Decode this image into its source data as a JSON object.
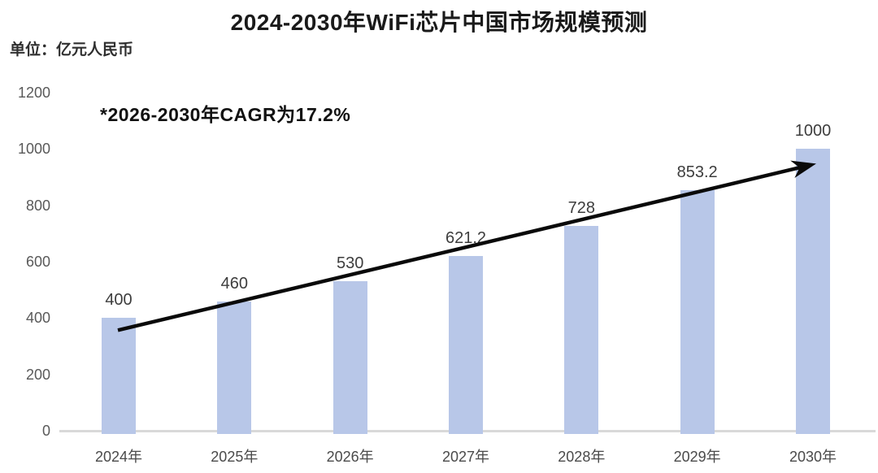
{
  "chart_data": {
    "type": "bar",
    "title": "2024-2030年WiFi芯片中国市场规模预测",
    "unit_label": "单位：亿元人民币",
    "annotation": "*2026-2030年CAGR为17.2%",
    "categories": [
      "2024年",
      "2025年",
      "2026年",
      "2027年",
      "2028年",
      "2029年",
      "2030年"
    ],
    "values": [
      400,
      460,
      530,
      621.2,
      728,
      853.2,
      1000
    ],
    "data_labels": [
      "400",
      "460",
      "530",
      "621.2",
      "728",
      "853.2",
      "1000"
    ],
    "xlabel": "",
    "ylabel": "",
    "ylim": [
      0,
      1200
    ],
    "yticks": [
      0,
      200,
      400,
      600,
      800,
      1000,
      1200
    ],
    "grid": false,
    "legend": "none",
    "trend_arrow": true,
    "colors": {
      "bar": "#B8C7E8",
      "arrow": "#0a0a0a",
      "axis_line": "#d9d9d9",
      "title_text": "#1a1a1a",
      "tick_text": "#595959",
      "label_text": "#3d3d3d"
    }
  }
}
